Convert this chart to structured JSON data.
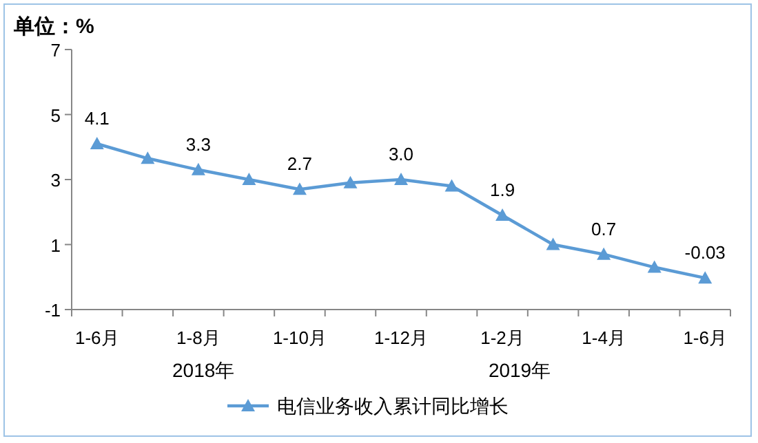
{
  "chart_data": {
    "type": "line",
    "ylabel": "单位：%",
    "categories": [
      "1-6月",
      null,
      "1-8月",
      null,
      "1-10月",
      null,
      "1-12月",
      null,
      "1-2月",
      null,
      "1-4月",
      null,
      "1-6月"
    ],
    "series": [
      {
        "name": "电信业务收入累计同比增长",
        "color": "#5b9bd5",
        "values": [
          4.1,
          3.65,
          3.3,
          3.0,
          2.7,
          2.9,
          3.0,
          2.8,
          1.9,
          1.0,
          0.7,
          0.3,
          -0.03
        ],
        "value_labels": [
          "4.1",
          null,
          "3.3",
          null,
          "2.7",
          null,
          "3.0",
          null,
          "1.9",
          null,
          "0.7",
          null,
          "-0.03"
        ]
      }
    ],
    "annotations": [
      "2018年",
      "2019年"
    ],
    "ylim": [
      -1,
      7
    ],
    "yticks": [
      -1,
      1,
      3,
      5,
      7
    ],
    "grid": false,
    "legend": "bottom",
    "marker": "triangle",
    "line_style": "solid"
  }
}
